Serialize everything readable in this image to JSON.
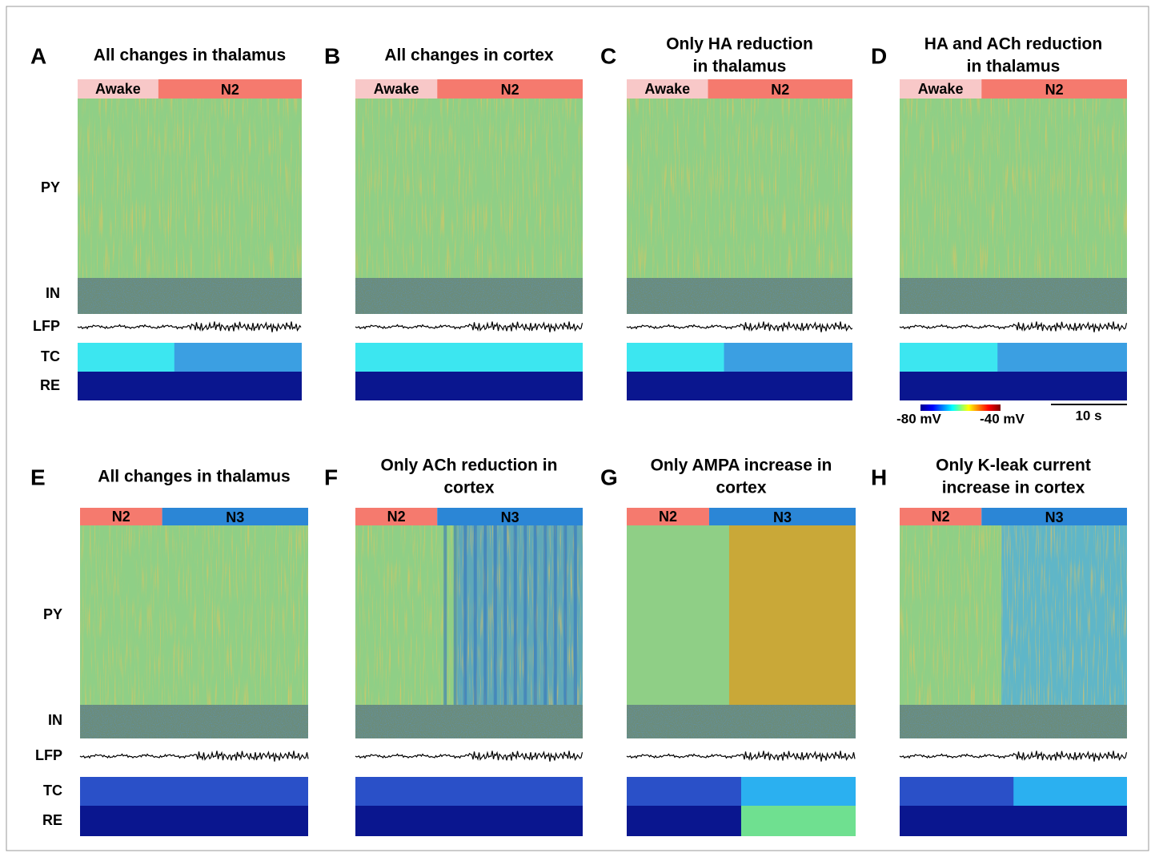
{
  "panels": [
    {
      "letter": "A",
      "title": [
        "All changes in thalamus"
      ],
      "stages": [
        "Awake",
        "N2"
      ],
      "rows": [
        "PY",
        "IN",
        "LFP",
        "TC",
        "RE"
      ]
    },
    {
      "letter": "B",
      "title": [
        "All changes in cortex"
      ],
      "stages": [
        "Awake",
        "N2"
      ]
    },
    {
      "letter": "C",
      "title": [
        "Only HA reduction",
        "in thalamus"
      ],
      "stages": [
        "Awake",
        "N2"
      ]
    },
    {
      "letter": "D",
      "title": [
        "HA and ACh reduction",
        "in thalamus"
      ],
      "stages": [
        "Awake",
        "N2"
      ]
    },
    {
      "letter": "E",
      "title": [
        "All changes in thalamus"
      ],
      "stages": [
        "N2",
        "N3"
      ],
      "rows": [
        "PY",
        "IN",
        "LFP",
        "TC",
        "RE"
      ]
    },
    {
      "letter": "F",
      "title": [
        "Only ACh reduction in",
        "cortex"
      ],
      "stages": [
        "N2",
        "N3"
      ]
    },
    {
      "letter": "G",
      "title": [
        "Only AMPA increase in",
        "cortex"
      ],
      "stages": [
        "N2",
        "N3"
      ]
    },
    {
      "letter": "H",
      "title": [
        "Only K-leak current",
        "increase in cortex"
      ],
      "stages": [
        "N2",
        "N3"
      ]
    }
  ],
  "colorbar": {
    "min_label": "-80 mV",
    "max_label": "-40 mV"
  },
  "scalebar": {
    "label": "10 s"
  }
}
